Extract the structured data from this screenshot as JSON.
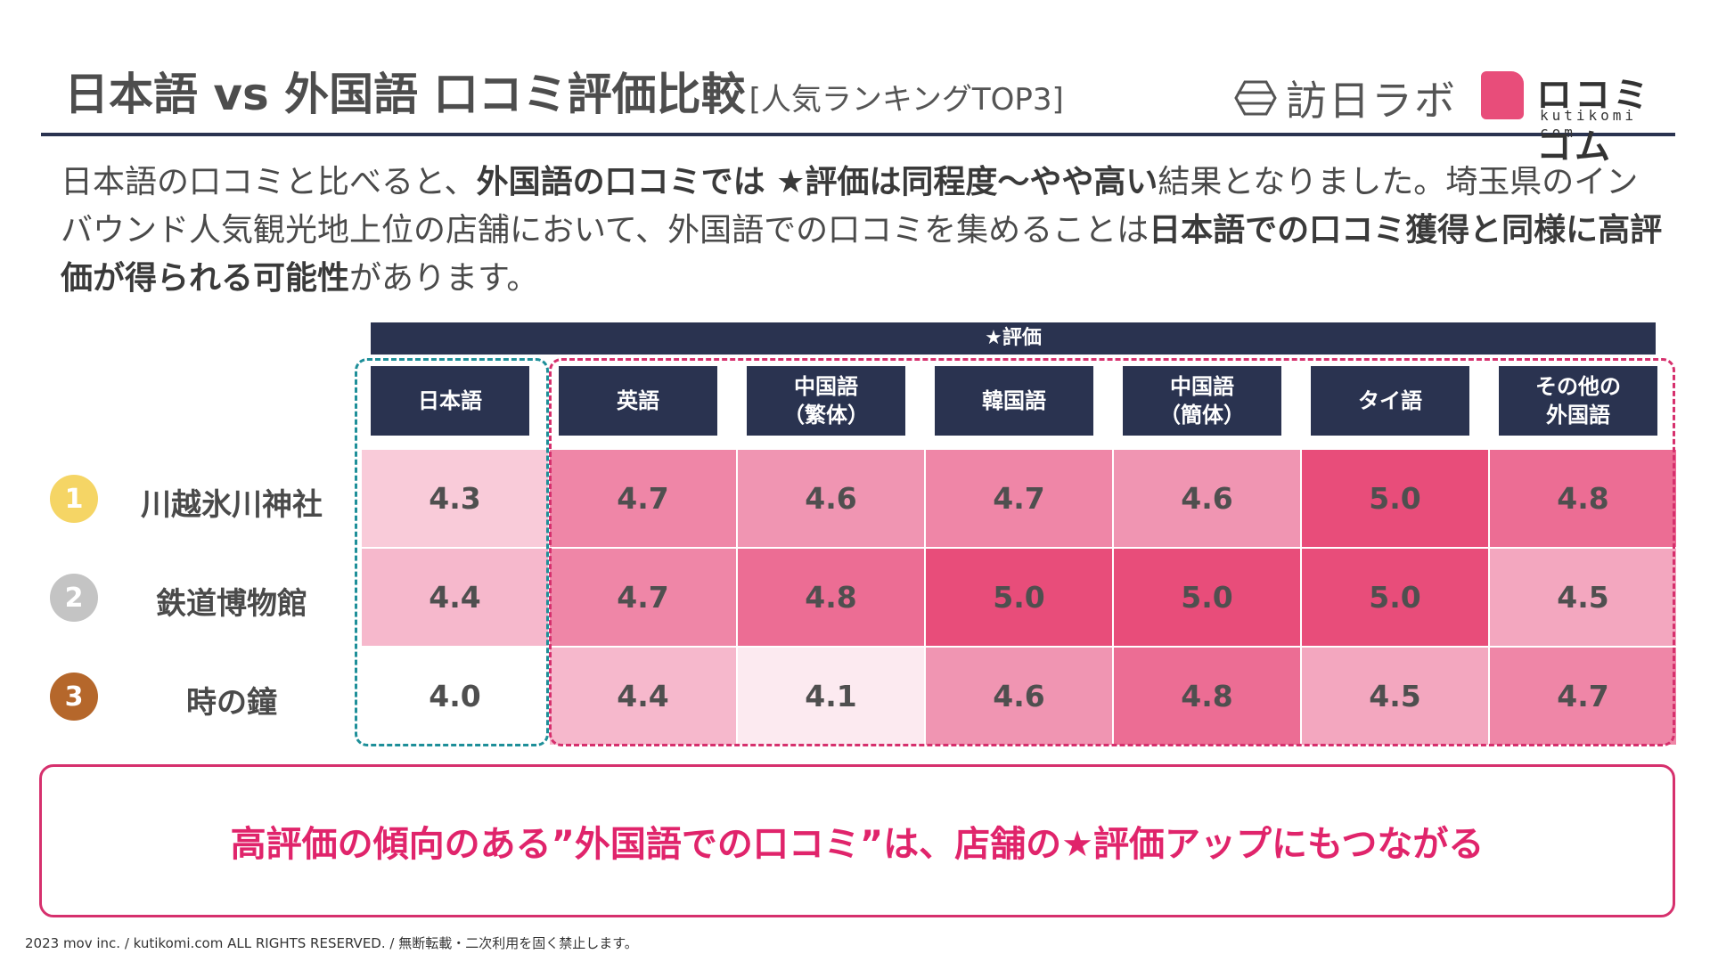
{
  "header": {
    "title": "日本語 vs 外国語 口コミ評価比較",
    "subtitle": "[人気ランキングTOP3]"
  },
  "logos": {
    "houjin": "訪日ラボ",
    "kuchikomi": "ロコミコム",
    "kuchikomi_sub": "kutikomi com",
    "brand_color": "#e84d7a"
  },
  "intro": {
    "p1": "日本語の口コミと比べると、",
    "b1": "外国語の口コミでは ★評価は同程度〜やや高い",
    "p2": "結果となりました。埼玉県のインバウンド人気観光地上位の店舗において、外国語での口コミを集めることは",
    "b2": "日本語での口コミ獲得と同様に高評価が得られる可能性",
    "p3": "があります。"
  },
  "table": {
    "group_header": "★評価",
    "columns": [
      "日本語",
      "英語",
      "中国語\n（繁体）",
      "韓国語",
      "中国語\n（簡体）",
      "タイ語",
      "その他の\n外国語"
    ],
    "rows": [
      {
        "rank": "1",
        "rank_color": "#f5d565",
        "name": "川越氷川神社",
        "values": [
          "4.3",
          "4.7",
          "4.6",
          "4.7",
          "4.6",
          "5.0",
          "4.8"
        ]
      },
      {
        "rank": "2",
        "rank_color": "#c4c4c4",
        "name": "鉄道博物館",
        "values": [
          "4.4",
          "4.7",
          "4.8",
          "5.0",
          "5.0",
          "5.0",
          "4.5"
        ]
      },
      {
        "rank": "3",
        "rank_color": "#b5672b",
        "name": "時の鐘",
        "values": [
          "4.0",
          "4.4",
          "4.1",
          "4.6",
          "4.8",
          "4.5",
          "4.7"
        ]
      }
    ],
    "heat_colors": {
      "4.0": "#ffffff",
      "4.1": "#fceaf0",
      "4.3": "#f9cbd9",
      "4.4": "#f6b8cc",
      "4.5": "#f3a7bf",
      "4.6": "#f095b2",
      "4.7": "#ef86a7",
      "4.8": "#ec6d94",
      "5.0": "#e84d7a"
    }
  },
  "callout": "高評価の傾向のある”外国語での口コミ”は、店舗の★評価アップにもつながる",
  "footer": "2023 mov inc. / kutikomi.com ALL RIGHTS RESERVED. / 無断転載・二次利用を固く禁止します。"
}
